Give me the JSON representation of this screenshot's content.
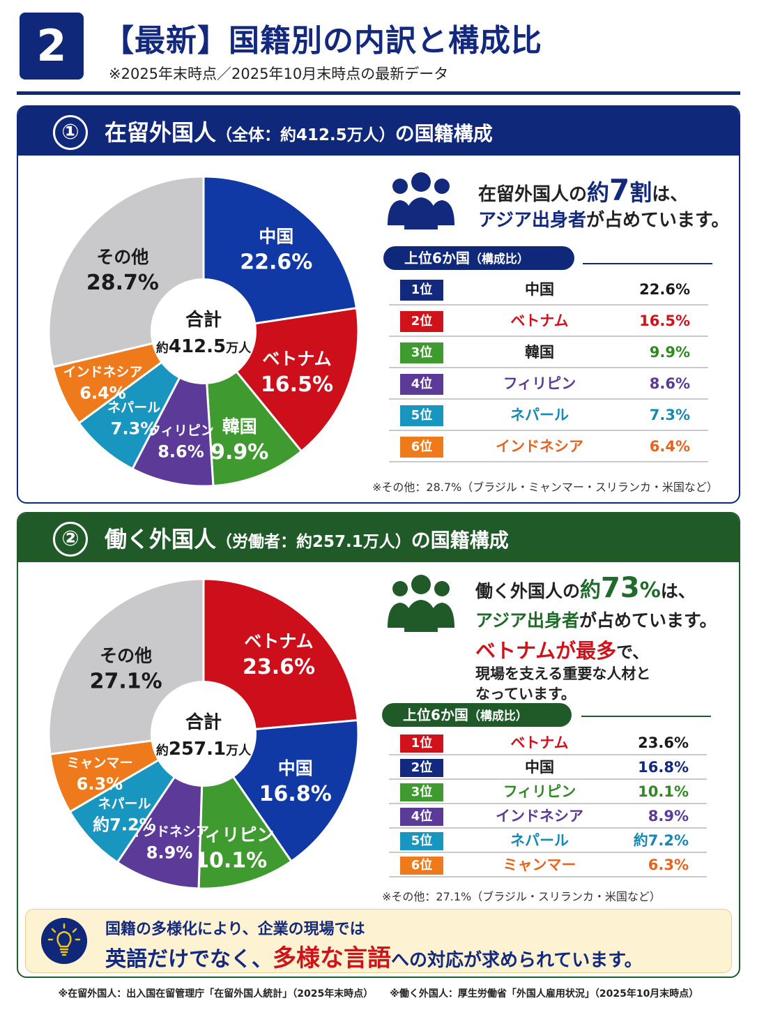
{
  "header": {
    "number": "2",
    "title": "【最新】国籍別の内訳と構成比",
    "subtitle": "※2025年末時点／2025年10月末時点の最新データ"
  },
  "section1": {
    "circle": "①",
    "title_main": "在留外国人",
    "title_paren": "（全体：約412.5万人）",
    "title_tail": "の国籍構成",
    "center_label": "合計",
    "center_value_prefix": "約",
    "center_value": "412.5",
    "center_value_unit": "万人",
    "message": {
      "line1_a": "在留外国人の",
      "line1_b": "約",
      "line1_c": "7",
      "line1_d": "割",
      "line1_e": "は、",
      "line2_a": "アジア出身者",
      "line2_b": "が占めています。"
    },
    "pill": "上位6か国",
    "pill_small": "（構成比）",
    "ranks": [
      {
        "rank": "1位",
        "name": "中国",
        "value": "22.6%",
        "color": "#12297d",
        "name_color": "#1a1a1a",
        "value_color": "#1a1a1a"
      },
      {
        "rank": "2位",
        "name": "ベトナム",
        "value": "16.5%",
        "color": "#d0121b",
        "name_color": "#d0121b",
        "value_color": "#d0121b"
      },
      {
        "rank": "3位",
        "name": "韓国",
        "value": "9.9%",
        "color": "#3f9a2f",
        "name_color": "#1a1a1a",
        "value_color": "#2f8a22"
      },
      {
        "rank": "4位",
        "name": "フィリピン",
        "value": "8.6%",
        "color": "#5b3a98",
        "name_color": "#5b3a98",
        "value_color": "#5b3a98"
      },
      {
        "rank": "5位",
        "name": "ネパール",
        "value": "7.3%",
        "color": "#1996c0",
        "name_color": "#1589b3",
        "value_color": "#1589b3"
      },
      {
        "rank": "6位",
        "name": "インドネシア",
        "value": "6.4%",
        "color": "#ee7a1b",
        "name_color": "#e8641a",
        "value_color": "#e8641a"
      }
    ],
    "note": "※その他：28.7%（ブラジル・ミャンマー・スリランカ・米国など）"
  },
  "section2": {
    "circle": "②",
    "title_main": "働く外国人",
    "title_paren": "（労働者：約257.1万人）",
    "title_tail": "の国籍構成",
    "center_label": "合計",
    "center_value_prefix": "約",
    "center_value": "257.1",
    "center_value_unit": "万人",
    "message": {
      "line1_a": "働く外国人の",
      "line1_b": "約",
      "line1_c": "73",
      "line1_d": "%",
      "line1_e": "は、",
      "line2_a": "アジア出身者",
      "line2_b": "が占めています。",
      "line3_a": "ベトナムが最多",
      "line3_b": "で、",
      "line4": "現場を支える重要な人材と",
      "line5": "なっています。"
    },
    "pill": "上位6か国",
    "pill_small": "（構成比）",
    "ranks": [
      {
        "rank": "1位",
        "name": "ベトナム",
        "value": "23.6%",
        "color": "#d0121b",
        "name_color": "#d0121b",
        "value_color": "#1a1a1a"
      },
      {
        "rank": "2位",
        "name": "中国",
        "value": "16.8%",
        "color": "#12297d",
        "name_color": "#1a1a1a",
        "value_color": "#12297d"
      },
      {
        "rank": "3位",
        "name": "フィリピン",
        "value": "10.1%",
        "color": "#3f9a2f",
        "name_color": "#2f8a22",
        "value_color": "#2f8a22"
      },
      {
        "rank": "4位",
        "name": "インドネシア",
        "value": "8.9%",
        "color": "#5b3a98",
        "name_color": "#5b3a98",
        "value_color": "#5b3a98"
      },
      {
        "rank": "5位",
        "name": "ネパール",
        "value": "約7.2%",
        "color": "#1996c0",
        "name_color": "#1589b3",
        "value_color": "#1589b3"
      },
      {
        "rank": "6位",
        "name": "ミャンマー",
        "value": "6.3%",
        "color": "#ee7a1b",
        "name_color": "#e8641a",
        "value_color": "#e8641a"
      }
    ],
    "note": "※その他：27.1%（ブラジル・スリランカ・米国など）"
  },
  "callout": {
    "line1": "国籍の多様化により、企業の現場では",
    "line2_a": "英語だけでなく、",
    "line2_b": "多様な言語",
    "line2_c": "への対応が求められています。"
  },
  "footer": {
    "left": "※在留外国人：出入国在留管理庁「在留外国人統計」（2025年末時点）",
    "right": "※働く外国人：厚生労働省「外国人雇用状況」（2025年10月末時点）"
  },
  "chart_data": [
    {
      "type": "pie",
      "categories": [
        "中国",
        "ベトナム",
        "韓国",
        "フィリピン",
        "ネパール",
        "インドネシア",
        "その他"
      ],
      "values": [
        22.6,
        16.5,
        9.9,
        8.6,
        7.3,
        6.4,
        28.7
      ],
      "labels": [
        "22.6%",
        "16.5%",
        "9.9%",
        "8.6%",
        "7.3%",
        "6.4%",
        "28.7%"
      ],
      "colors": [
        "#1139a6",
        "#cc0f1a",
        "#3f9a2f",
        "#5b3a98",
        "#1996c0",
        "#ee7a1b",
        "#c9c9cc"
      ],
      "title": "",
      "legend": "none"
    },
    {
      "type": "pie",
      "categories": [
        "ベトナム",
        "中国",
        "フィリピン",
        "インドネシア",
        "ネパール",
        "ミャンマー",
        "その他"
      ],
      "values": [
        23.6,
        16.8,
        10.1,
        8.9,
        7.2,
        6.3,
        27.1
      ],
      "labels": [
        "23.6%",
        "16.8%",
        "10.1%",
        "8.9%",
        "約7.2%",
        "6.3%",
        "27.1%"
      ],
      "colors": [
        "#cc0f1a",
        "#1139a6",
        "#3f9a2f",
        "#5b3a98",
        "#1996c0",
        "#ee7a1b",
        "#c9c9cc"
      ],
      "title": "",
      "legend": "none"
    }
  ]
}
